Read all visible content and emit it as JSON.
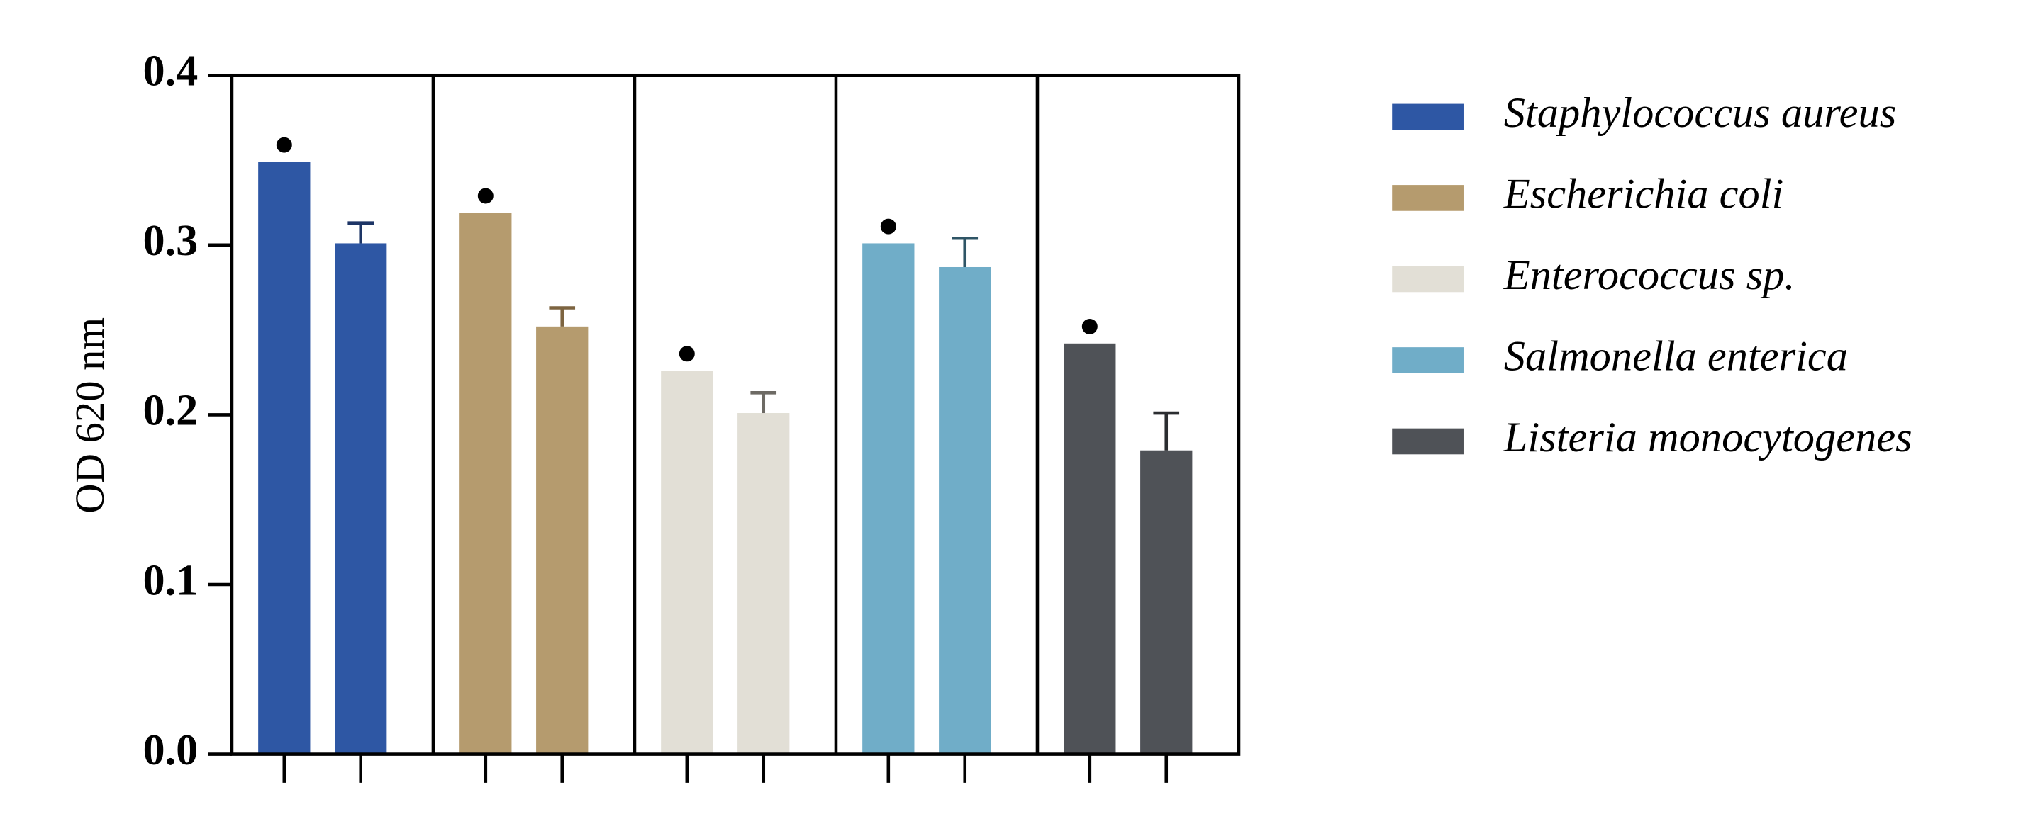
{
  "chart_data": {
    "type": "bar",
    "y_label": "OD 620 nm",
    "categories": [
      null,
      null
    ],
    "ylim": [
      0,
      0.4
    ],
    "yticks": [
      {
        "value": 0,
        "label": "0.0"
      },
      0.1,
      0.2,
      0.3,
      0.4
    ],
    "series": [
      {
        "name": "Staphylococcus aureus",
        "color": "#2e57a4",
        "error_color": "#1d3566",
        "values": [
          0.349,
          0.301
        ],
        "errors": [
          null,
          0.012
        ]
      },
      {
        "name": "Escherichia coli",
        "color": "#b59b6e",
        "error_color": "#7d6440",
        "values": [
          0.319,
          0.252
        ],
        "errors": [
          null,
          0.011
        ]
      },
      {
        "name": "Enterococcus sp.",
        "color": "#e2dfd6",
        "error_color": "#6d6a64",
        "values": [
          0.226,
          0.201
        ],
        "errors": [
          null,
          0.012
        ]
      },
      {
        "name": "Salmonella enterica",
        "color": "#70adc8",
        "error_color": "#2f5566",
        "values": [
          0.301,
          0.287
        ],
        "errors": [
          null,
          0.017
        ]
      },
      {
        "name": "Listeria monocytogenes",
        "color": "#4f5257",
        "error_color": "#2b2d30",
        "values": [
          0.242,
          0.179
        ],
        "errors": [
          null,
          0.022
        ]
      }
    ]
  }
}
